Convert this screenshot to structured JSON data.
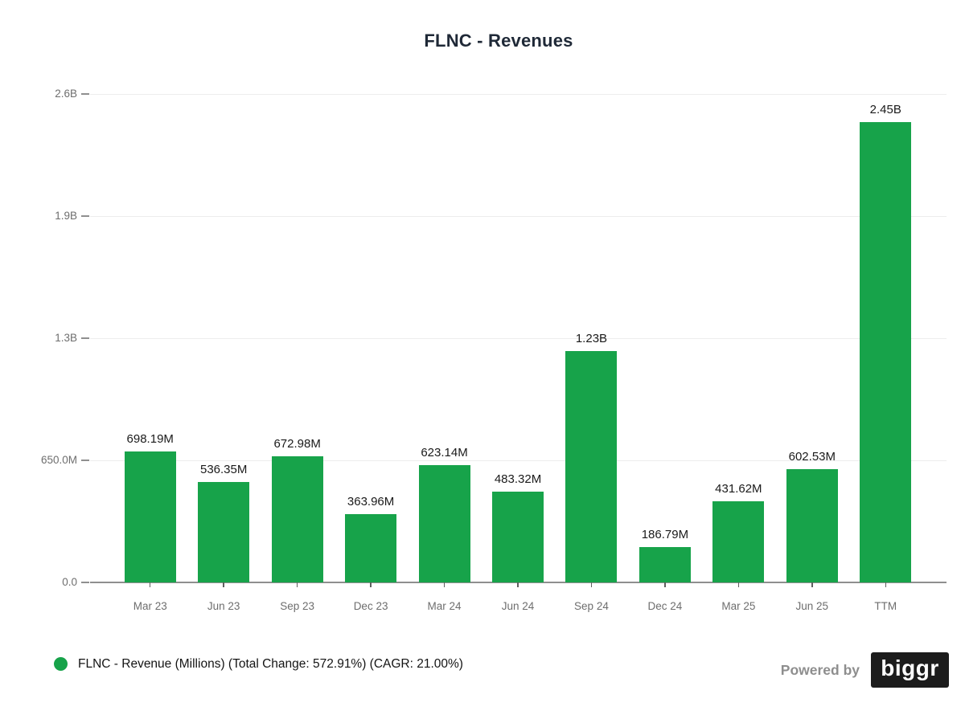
{
  "title": "FLNC - Revenues",
  "chart_data": {
    "type": "bar",
    "title": "FLNC - Revenues",
    "categories": [
      "Mar 23",
      "Jun 23",
      "Sep 23",
      "Dec 23",
      "Mar 24",
      "Jun 24",
      "Sep 24",
      "Dec 24",
      "Mar 25",
      "Jun 25",
      "TTM"
    ],
    "series": [
      {
        "name": "FLNC - Revenue (Millions)",
        "values_millions": [
          698.19,
          536.35,
          672.98,
          363.96,
          623.14,
          483.32,
          1230,
          186.79,
          431.62,
          602.53,
          2450
        ],
        "value_labels": [
          "698.19M",
          "536.35M",
          "672.98M",
          "363.96M",
          "623.14M",
          "483.32M",
          "1.23B",
          "186.79M",
          "431.62M",
          "602.53M",
          "2.45B"
        ]
      }
    ],
    "xlabel": "",
    "ylabel": "",
    "ylim_millions": [
      0,
      2600
    ],
    "y_ticks": [
      {
        "value": 0,
        "label": "0.0"
      },
      {
        "value": 650,
        "label": "650.0M"
      },
      {
        "value": 1300,
        "label": "1.3B"
      },
      {
        "value": 1950,
        "label": "1.9B"
      },
      {
        "value": 2600,
        "label": "2.6B"
      }
    ],
    "grid": true,
    "legend_position": "bottom-left",
    "stats": {
      "total_change_pct": "572.91%",
      "cagr_pct": "21.00%"
    }
  },
  "legend": {
    "label": "FLNC - Revenue (Millions) (Total Change: 572.91%) (CAGR: 21.00%)"
  },
  "footer": {
    "powered_by": "Powered by",
    "brand": "biggr"
  },
  "colors": {
    "bar": "#17a34a",
    "grid": "#ededed",
    "axis": "#8f8f8f",
    "tick": "#5f5f5f",
    "tick_label": "#6e6e6e",
    "value_label": "#1a1a1a",
    "title": "#1f2937",
    "legend_text": "#141414",
    "powered_by_text": "#8e8e8e",
    "brand_bg": "#1c1c1c",
    "brand_text": "#ffffff"
  }
}
